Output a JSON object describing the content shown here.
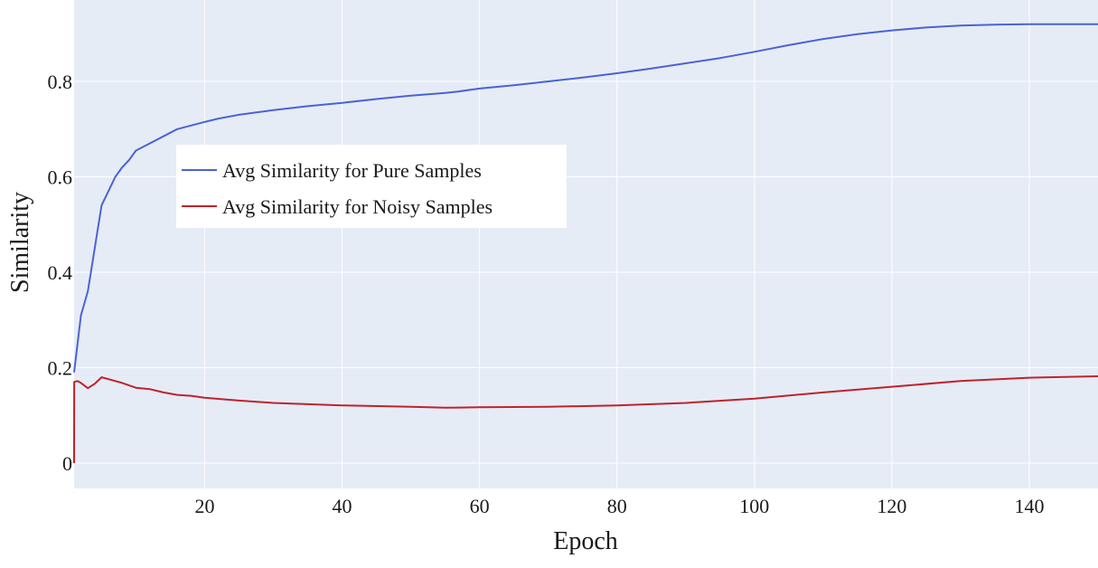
{
  "chart_data": {
    "type": "line",
    "title": "",
    "xlabel": "Epoch",
    "ylabel": "Similarity",
    "xlim": [
      1,
      150
    ],
    "ylim": [
      0,
      0.93
    ],
    "xticks": [
      20,
      40,
      60,
      80,
      100,
      120,
      140
    ],
    "yticks": [
      0,
      0.2,
      0.4,
      0.6,
      0.8
    ],
    "ytick_labels": [
      "0",
      "0.2",
      "0.4",
      "0.6",
      "0.8"
    ],
    "grid": true,
    "legend_position": "upper-left-inside",
    "background_color": "#e5ecf6",
    "series": [
      {
        "name": "Avg Similarity for Pure Samples",
        "color": "#4a63d4",
        "x": [
          1,
          2,
          3,
          4,
          5,
          6,
          7,
          8,
          9,
          10,
          12,
          14,
          16,
          20,
          22,
          25,
          30,
          35,
          40,
          45,
          50,
          55,
          57,
          60,
          65,
          70,
          75,
          80,
          85,
          90,
          95,
          100,
          105,
          110,
          115,
          120,
          125,
          130,
          135,
          140,
          145,
          150
        ],
        "y": [
          0.19,
          0.31,
          0.36,
          0.45,
          0.54,
          0.57,
          0.6,
          0.62,
          0.635,
          0.655,
          0.67,
          0.685,
          0.7,
          0.715,
          0.722,
          0.73,
          0.74,
          0.748,
          0.755,
          0.763,
          0.77,
          0.776,
          0.779,
          0.785,
          0.792,
          0.8,
          0.808,
          0.817,
          0.827,
          0.838,
          0.849,
          0.862,
          0.876,
          0.889,
          0.899,
          0.907,
          0.913,
          0.917,
          0.919,
          0.92,
          0.92,
          0.92
        ]
      },
      {
        "name": "Avg Similarity for Noisy Samples",
        "color": "#c0222c",
        "x": [
          1,
          1.01,
          1.5,
          2,
          3,
          4,
          5,
          6,
          8,
          10,
          12,
          14,
          16,
          18,
          20,
          25,
          30,
          40,
          50,
          55,
          60,
          70,
          80,
          90,
          100,
          110,
          120,
          130,
          140,
          150
        ],
        "y": [
          0.0,
          0.17,
          0.172,
          0.168,
          0.157,
          0.166,
          0.18,
          0.176,
          0.168,
          0.158,
          0.155,
          0.148,
          0.143,
          0.141,
          0.137,
          0.131,
          0.126,
          0.121,
          0.118,
          0.116,
          0.117,
          0.118,
          0.121,
          0.126,
          0.135,
          0.148,
          0.16,
          0.172,
          0.179,
          0.182
        ]
      }
    ]
  }
}
